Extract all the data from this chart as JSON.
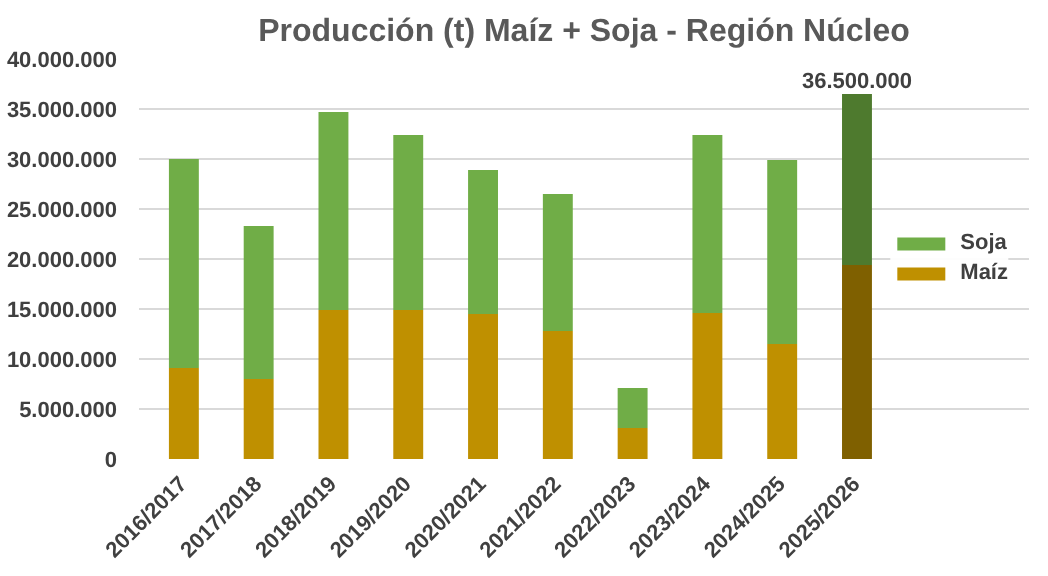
{
  "chart_data": {
    "type": "bar",
    "title": "Producción (t) Maíz + Soja - Región Núcleo",
    "stacked": true,
    "categories": [
      "2016/2017",
      "2017/2018",
      "2018/2019",
      "2019/2020",
      "2020/2021",
      "2021/2022",
      "2022/2023",
      "2023/2024",
      "2024/2025",
      "2025/2026"
    ],
    "series": [
      {
        "name": "Maíz",
        "color": "#bf9000",
        "colors": [
          "#bf9000",
          "#bf9000",
          "#bf9000",
          "#bf9000",
          "#bf9000",
          "#bf9000",
          "#bf9000",
          "#bf9000",
          "#bf9000",
          "#7f6000"
        ],
        "values": [
          9100000,
          8000000,
          14900000,
          14900000,
          14500000,
          12800000,
          3100000,
          14600000,
          11500000,
          19400000
        ]
      },
      {
        "name": "Soja",
        "color": "#70ad47",
        "colors": [
          "#70ad47",
          "#70ad47",
          "#70ad47",
          "#70ad47",
          "#70ad47",
          "#70ad47",
          "#70ad47",
          "#70ad47",
          "#70ad47",
          "#4e7a2e"
        ],
        "values": [
          20900000,
          15300000,
          19800000,
          17500000,
          14400000,
          13700000,
          4000000,
          17800000,
          18400000,
          17100000
        ]
      }
    ],
    "totals": [
      null,
      null,
      null,
      null,
      null,
      null,
      null,
      null,
      null,
      "36.500.000"
    ],
    "ylim": [
      0,
      40000000
    ],
    "yticks": [
      0,
      {
        "value": 5000000,
        "label": "5.000.000"
      },
      {
        "value": 10000000,
        "label": "10.000.000"
      },
      {
        "value": 15000000,
        "label": "15.000.000"
      },
      {
        "value": 20000000,
        "label": "20.000.000"
      },
      {
        "value": 25000000,
        "label": "25.000.000"
      },
      {
        "value": 30000000,
        "label": "30.000.000"
      },
      {
        "value": 35000000,
        "label": "35.000.000"
      },
      {
        "value": 40000000,
        "label": "40.000.000"
      }
    ],
    "grid": "y",
    "legend": "right"
  }
}
